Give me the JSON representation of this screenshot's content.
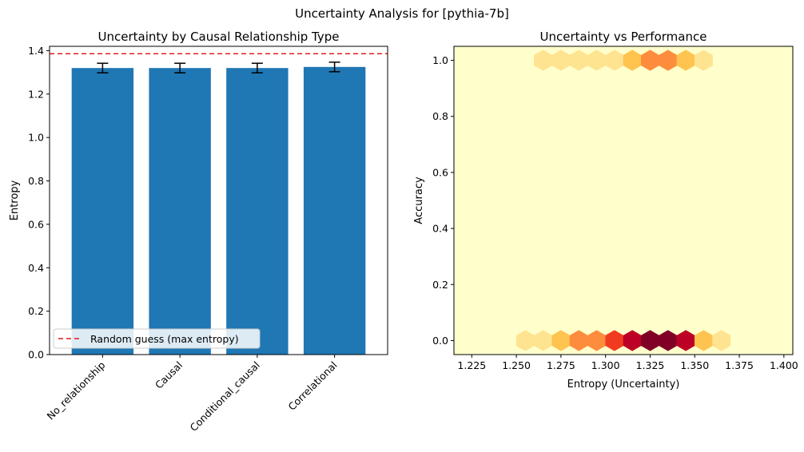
{
  "figure_title": "Uncertainty Analysis for [pythia-7b]",
  "colors": {
    "bar": "#1f77b4",
    "random_line": "#e41a1c",
    "hex_scale": [
      "#ffffcc",
      "#fee391",
      "#fec44f",
      "#fd8d3c",
      "#f03b20",
      "#bd0026",
      "#800026"
    ]
  },
  "chart_data": [
    {
      "type": "bar",
      "title": "Uncertainty by Causal Relationship Type",
      "xlabel": "",
      "ylabel": "Entropy",
      "categories": [
        "No_relationship",
        "Causal",
        "Conditional_causal",
        "Correlational"
      ],
      "values": [
        1.32,
        1.32,
        1.32,
        1.325
      ],
      "errors": [
        0.022,
        0.022,
        0.022,
        0.022
      ],
      "ylim": [
        0,
        1.42
      ],
      "yticks": [
        "0.0",
        "0.2",
        "0.4",
        "0.6",
        "0.8",
        "1.0",
        "1.2",
        "1.4"
      ],
      "reference_line": {
        "y": 1.386,
        "label": "Random guess (max entropy)",
        "style": "dashed"
      },
      "legend": {
        "position": "lower-left",
        "entries": [
          "Random guess (max entropy)"
        ]
      },
      "grid": false
    },
    {
      "type": "heatmap",
      "subtype": "hexbin",
      "title": "Uncertainty vs Performance",
      "xlabel": "Entropy (Uncertainty)",
      "ylabel": "Accuracy",
      "xlim": [
        1.215,
        1.405
      ],
      "ylim": [
        -0.05,
        1.05
      ],
      "xticks": [
        "1.225",
        "1.250",
        "1.275",
        "1.300",
        "1.325",
        "1.350",
        "1.375",
        "1.400"
      ],
      "yticks": [
        "0.0",
        "0.2",
        "0.4",
        "0.6",
        "0.8",
        "1.0"
      ],
      "hot_cells": [
        {
          "x": 1.255,
          "y": 0.0,
          "level": 1
        },
        {
          "x": 1.265,
          "y": 0.0,
          "level": 1
        },
        {
          "x": 1.275,
          "y": 0.0,
          "level": 2
        },
        {
          "x": 1.285,
          "y": 0.0,
          "level": 3
        },
        {
          "x": 1.295,
          "y": 0.0,
          "level": 3
        },
        {
          "x": 1.305,
          "y": 0.0,
          "level": 4
        },
        {
          "x": 1.315,
          "y": 0.0,
          "level": 5
        },
        {
          "x": 1.325,
          "y": 0.0,
          "level": 6
        },
        {
          "x": 1.335,
          "y": 0.0,
          "level": 6
        },
        {
          "x": 1.345,
          "y": 0.0,
          "level": 5
        },
        {
          "x": 1.355,
          "y": 0.0,
          "level": 2
        },
        {
          "x": 1.365,
          "y": 0.0,
          "level": 1
        },
        {
          "x": 1.265,
          "y": 1.0,
          "level": 1
        },
        {
          "x": 1.275,
          "y": 1.0,
          "level": 1
        },
        {
          "x": 1.285,
          "y": 1.0,
          "level": 1
        },
        {
          "x": 1.295,
          "y": 1.0,
          "level": 1
        },
        {
          "x": 1.305,
          "y": 1.0,
          "level": 1
        },
        {
          "x": 1.315,
          "y": 1.0,
          "level": 2
        },
        {
          "x": 1.325,
          "y": 1.0,
          "level": 3
        },
        {
          "x": 1.335,
          "y": 1.0,
          "level": 3
        },
        {
          "x": 1.345,
          "y": 1.0,
          "level": 2
        },
        {
          "x": 1.355,
          "y": 1.0,
          "level": 1
        }
      ],
      "grid": false
    }
  ]
}
